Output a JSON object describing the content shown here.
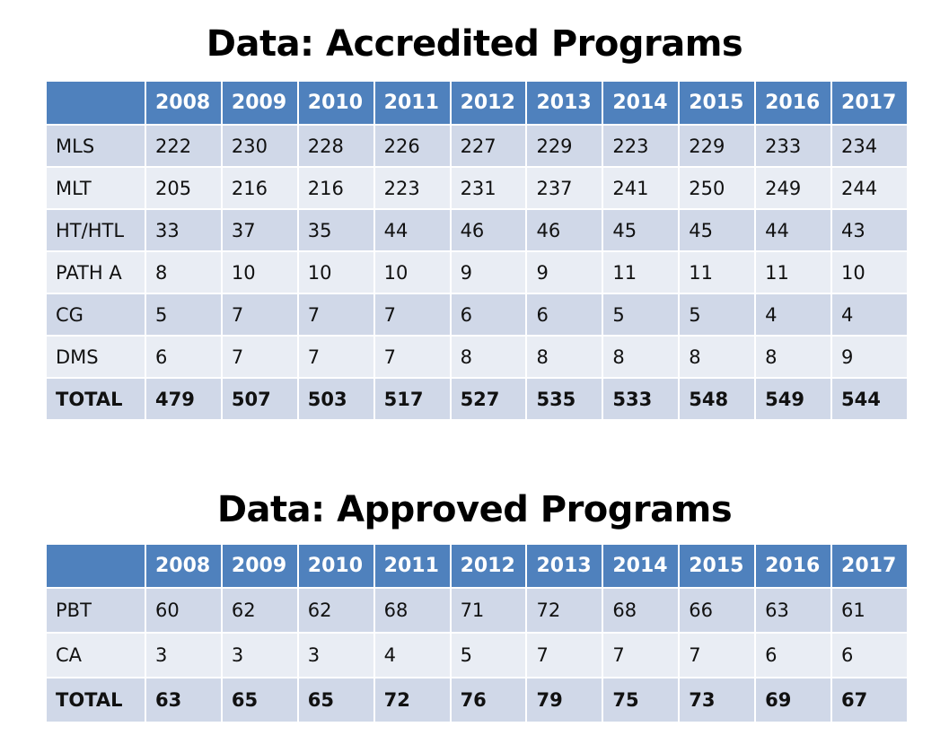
{
  "accredited": {
    "title": "Data: Accredited Programs",
    "years": [
      "2008",
      "2009",
      "2010",
      "2011",
      "2012",
      "2013",
      "2014",
      "2015",
      "2016",
      "2017"
    ],
    "rows": [
      {
        "label": "MLS",
        "values": [
          "222",
          "230",
          "228",
          "226",
          "227",
          "229",
          "223",
          "229",
          "233",
          "234"
        ]
      },
      {
        "label": "MLT",
        "values": [
          "205",
          "216",
          "216",
          "223",
          "231",
          "237",
          "241",
          "250",
          "249",
          "244"
        ]
      },
      {
        "label": "HT/HTL",
        "values": [
          "33",
          "37",
          "35",
          "44",
          "46",
          "46",
          "45",
          "45",
          "44",
          "43"
        ]
      },
      {
        "label": "PATH A",
        "values": [
          "8",
          "10",
          "10",
          "10",
          "9",
          "9",
          "11",
          "11",
          "11",
          "10"
        ]
      },
      {
        "label": "CG",
        "values": [
          "5",
          "7",
          "7",
          "7",
          "6",
          "6",
          "5",
          "5",
          "4",
          "4"
        ]
      },
      {
        "label": "DMS",
        "values": [
          "6",
          "7",
          "7",
          "7",
          "8",
          "8",
          "8",
          "8",
          "8",
          "9"
        ]
      },
      {
        "label": "TOTAL",
        "values": [
          "479",
          "507",
          "503",
          "517",
          "527",
          "535",
          "533",
          "548",
          "549",
          "544"
        ],
        "total": true
      }
    ]
  },
  "approved": {
    "title": "Data: Approved Programs",
    "years": [
      "2008",
      "2009",
      "2010",
      "2011",
      "2012",
      "2013",
      "2014",
      "2015",
      "2016",
      "2017"
    ],
    "rows": [
      {
        "label": "PBT",
        "values": [
          "60",
          "62",
          "62",
          "68",
          "71",
          "72",
          "68",
          "66",
          "63",
          "61"
        ]
      },
      {
        "label": "CA",
        "values": [
          "3",
          "3",
          "3",
          "4",
          "5",
          "7",
          "7",
          "7",
          "6",
          "6"
        ]
      },
      {
        "label": "TOTAL",
        "values": [
          "63",
          "65",
          "65",
          "72",
          "76",
          "79",
          "75",
          "73",
          "69",
          "67"
        ],
        "total": true
      }
    ]
  },
  "colors": {
    "header": "#4f81bd",
    "row_odd": "#d0d8e8",
    "row_even": "#e9edf4"
  }
}
